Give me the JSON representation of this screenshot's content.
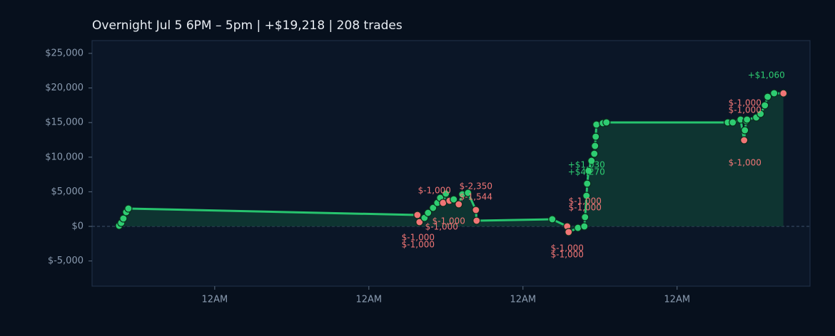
{
  "chart_data": {
    "type": "line",
    "title": "Overnight  Jul 5 6PM – 5pm  |  +$19,218  |  208 trades",
    "x": [
      -8.89,
      -8.56,
      -8.22,
      -7.78,
      -7.44,
      37.56,
      37.89,
      38.67,
      39.22,
      40,
      40.67,
      41.11,
      41.56,
      42,
      42.56,
      43.22,
      44,
      44.56,
      45.44,
      46.67,
      46.78,
      58.56,
      60.89,
      61.11,
      62.56,
      63.56,
      63.67,
      63.89,
      64,
      64.22,
      64.67,
      65.11,
      65.22,
      65.33,
      65.44,
      66.44,
      67,
      85.89,
      86.67,
      87.89,
      88.44,
      88.56,
      88.78,
      88.89,
      90.33,
      91,
      91.67,
      92.11,
      93.11,
      94.56
    ],
    "values": [
      100,
      500,
      1130,
      2060,
      2570,
      1650,
      620,
      1230,
      1950,
      2670,
      3400,
      4120,
      3400,
      4730,
      3700,
      3900,
      3190,
      4630,
      4840,
      2370,
      820,
      1030,
      0,
      -820,
      -210,
      0,
      1340,
      4420,
      6170,
      8020,
      9470,
      10490,
      11630,
      12960,
      14710,
      14920,
      15020,
      15020,
      15020,
      15430,
      12450,
      13890,
      15230,
      15430,
      15740,
      16260,
      17490,
      18720,
      19240,
      19218
    ],
    "xlim": [
      -13.1,
      98.7
    ],
    "ylim": [
      -8640,
      26850
    ],
    "xticks": [
      {
        "value": 6,
        "label": "12AM"
      },
      {
        "value": 30,
        "label": "12AM"
      },
      {
        "value": 54,
        "label": "12AM"
      },
      {
        "value": 78,
        "label": "12AM"
      }
    ],
    "yticks": [
      {
        "value": -5000,
        "label": "$-5,000"
      },
      {
        "value": 0,
        "label": "$0"
      },
      {
        "value": 5000,
        "label": "$5,000"
      },
      {
        "value": 10000,
        "label": "$10,000"
      },
      {
        "value": 15000,
        "label": "$15,000"
      },
      {
        "value": 20000,
        "label": "$20,000"
      },
      {
        "value": 25000,
        "label": "$25,000"
      }
    ],
    "color": "#27c46e",
    "win_color": "#2ecc71",
    "loss_color": "#f07575",
    "fill_color": "#0f3a34",
    "zero_line": true,
    "annotations": [
      {
        "text": "+$1,060",
        "x": 91.89,
        "y": 21810,
        "color": "#2ecc71"
      },
      {
        "text": "$-1,000",
        "x": 88.56,
        "y": 17800,
        "color": "#f07575"
      },
      {
        "text": "$-1,000",
        "x": 88.56,
        "y": 16770,
        "color": "#f07575"
      },
      {
        "text": "$-1,000",
        "x": 88.56,
        "y": 9160,
        "color": "#f07575"
      },
      {
        "text": "+$1,030",
        "x": 63.89,
        "y": 8850,
        "color": "#2ecc71"
      },
      {
        "text": "+$4,270",
        "x": 63.89,
        "y": 7820,
        "color": "#2ecc71"
      },
      {
        "text": "$-1,000",
        "x": 63.67,
        "y": 3600,
        "color": "#f07575"
      },
      {
        "text": "$-1,000",
        "x": 63.67,
        "y": 2670,
        "color": "#f07575"
      },
      {
        "text": "$-1,000",
        "x": 60.89,
        "y": -3190,
        "color": "#f07575"
      },
      {
        "text": "$-1,000",
        "x": 60.89,
        "y": -4120,
        "color": "#f07575"
      },
      {
        "text": "$-1,000",
        "x": 40.22,
        "y": 5140,
        "color": "#f07575"
      },
      {
        "text": "$-2,350",
        "x": 46.67,
        "y": 5760,
        "color": "#f07575"
      },
      {
        "text": "$-1,544",
        "x": 46.67,
        "y": 4220,
        "color": "#f07575"
      },
      {
        "text": "$-1,000",
        "x": 42.44,
        "y": 720,
        "color": "#f07575"
      },
      {
        "text": "$-1,000",
        "x": 41.33,
        "y": -100,
        "color": "#f07575"
      },
      {
        "text": "$-1,000",
        "x": 37.67,
        "y": -1650,
        "color": "#f07575"
      },
      {
        "text": "$-1,000",
        "x": 37.67,
        "y": -2670,
        "color": "#f07575"
      }
    ]
  }
}
